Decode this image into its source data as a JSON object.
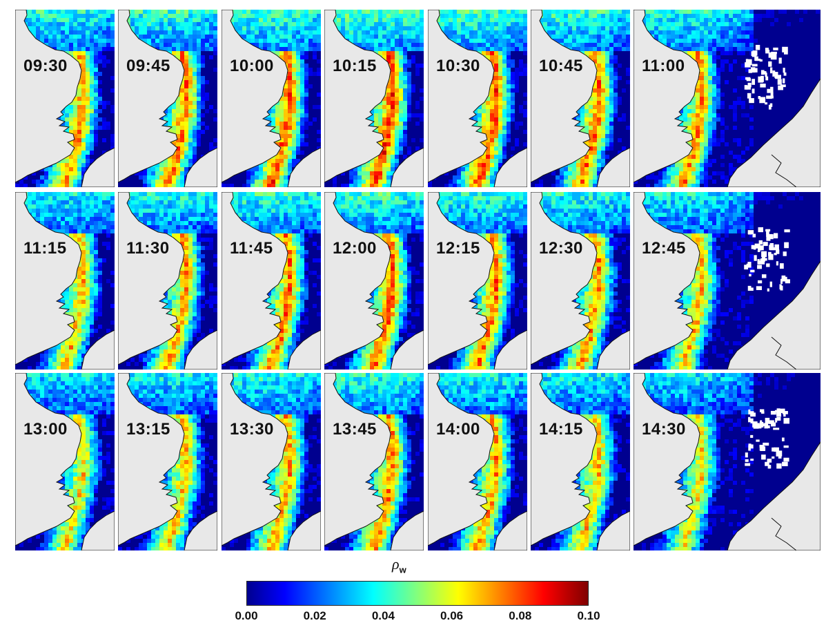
{
  "chart_data": {
    "type": "heatmap",
    "variable_label": "ρ",
    "variable_subscript": "w",
    "colormap": "jet",
    "value_range": [
      0.0,
      0.1
    ],
    "colorbar_ticks": [
      "0.00",
      "0.02",
      "0.04",
      "0.06",
      "0.08",
      "0.10"
    ],
    "layout": "3 rows x 7 columns of map panels",
    "panels": [
      {
        "time": "09:30",
        "wide": false
      },
      {
        "time": "09:45",
        "wide": false
      },
      {
        "time": "10:00",
        "wide": false
      },
      {
        "time": "10:15",
        "wide": false
      },
      {
        "time": "10:30",
        "wide": false
      },
      {
        "time": "10:45",
        "wide": false
      },
      {
        "time": "11:00",
        "wide": true
      },
      {
        "time": "11:15",
        "wide": false
      },
      {
        "time": "11:30",
        "wide": false
      },
      {
        "time": "11:45",
        "wide": false
      },
      {
        "time": "12:00",
        "wide": false
      },
      {
        "time": "12:15",
        "wide": false
      },
      {
        "time": "12:30",
        "wide": false
      },
      {
        "time": "12:45",
        "wide": true
      },
      {
        "time": "13:00",
        "wide": false
      },
      {
        "time": "13:15",
        "wide": false
      },
      {
        "time": "13:30",
        "wide": false
      },
      {
        "time": "13:45",
        "wide": false
      },
      {
        "time": "14:00",
        "wide": false
      },
      {
        "time": "14:15",
        "wide": false
      },
      {
        "time": "14:30",
        "wide": true
      }
    ],
    "colors": {
      "land": "#e8e8e8",
      "coastline": "#111111",
      "cloud_mask": "#ffffff",
      "jet_stops": [
        "#00008f",
        "#0000ff",
        "#00ffff",
        "#ffff00",
        "#ff0000",
        "#800000"
      ]
    }
  }
}
